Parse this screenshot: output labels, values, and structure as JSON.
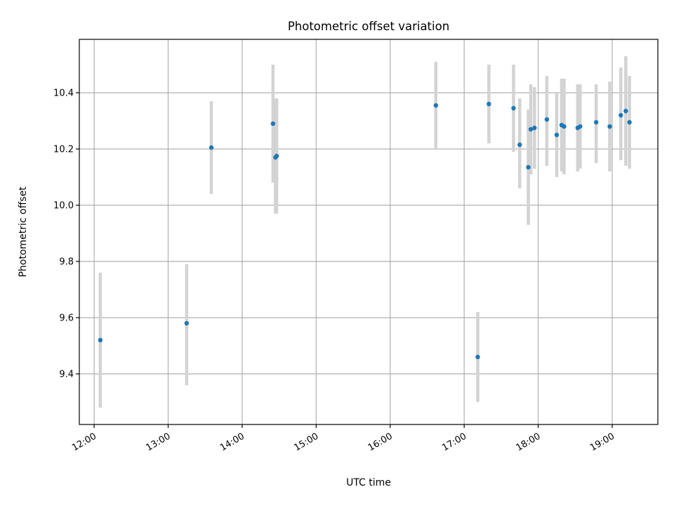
{
  "chart_data": {
    "type": "scatter",
    "title": "Photometric offset variation",
    "xlabel": "UTC time",
    "ylabel": "Photometric offset",
    "x_ticks": [
      "12:00",
      "13:00",
      "14:00",
      "15:00",
      "16:00",
      "17:00",
      "18:00",
      "19:00"
    ],
    "y_ticks": [
      "9.4",
      "9.6",
      "9.8",
      "10.0",
      "10.2",
      "10.4"
    ],
    "xlim": [
      "11:48",
      "19:37"
    ],
    "ylim": [
      9.22,
      10.59
    ],
    "grid": true,
    "marker_color": "#1f77b4",
    "errorbar_color": "#d3d3d3",
    "points": [
      {
        "x": "12:05",
        "y": 9.52,
        "ylow": 9.28,
        "yhigh": 9.76
      },
      {
        "x": "13:15",
        "y": 9.58,
        "ylow": 9.36,
        "yhigh": 9.79
      },
      {
        "x": "13:35",
        "y": 10.205,
        "ylow": 10.04,
        "yhigh": 10.37
      },
      {
        "x": "14:25",
        "y": 10.29,
        "ylow": 10.08,
        "yhigh": 10.5
      },
      {
        "x": "14:27",
        "y": 10.17,
        "ylow": 9.97,
        "yhigh": 10.38
      },
      {
        "x": "14:28",
        "y": 10.175,
        "ylow": 9.97,
        "yhigh": 10.38
      },
      {
        "x": "16:37",
        "y": 10.355,
        "ylow": 10.2,
        "yhigh": 10.51
      },
      {
        "x": "17:11",
        "y": 9.46,
        "ylow": 9.3,
        "yhigh": 9.62
      },
      {
        "x": "17:20",
        "y": 10.36,
        "ylow": 10.22,
        "yhigh": 10.5
      },
      {
        "x": "17:40",
        "y": 10.345,
        "ylow": 10.19,
        "yhigh": 10.5
      },
      {
        "x": "17:45",
        "y": 10.215,
        "ylow": 10.06,
        "yhigh": 10.38
      },
      {
        "x": "17:52",
        "y": 10.135,
        "ylow": 9.93,
        "yhigh": 10.34
      },
      {
        "x": "17:54",
        "y": 10.27,
        "ylow": 10.11,
        "yhigh": 10.43
      },
      {
        "x": "17:57",
        "y": 10.275,
        "ylow": 10.13,
        "yhigh": 10.42
      },
      {
        "x": "18:07",
        "y": 10.305,
        "ylow": 10.14,
        "yhigh": 10.46
      },
      {
        "x": "18:15",
        "y": 10.25,
        "ylow": 10.1,
        "yhigh": 10.4
      },
      {
        "x": "18:19",
        "y": 10.285,
        "ylow": 10.12,
        "yhigh": 10.45
      },
      {
        "x": "18:21",
        "y": 10.28,
        "ylow": 10.11,
        "yhigh": 10.45
      },
      {
        "x": "18:32",
        "y": 10.275,
        "ylow": 10.12,
        "yhigh": 10.43
      },
      {
        "x": "18:34",
        "y": 10.28,
        "ylow": 10.13,
        "yhigh": 10.43
      },
      {
        "x": "18:47",
        "y": 10.295,
        "ylow": 10.15,
        "yhigh": 10.43
      },
      {
        "x": "18:58",
        "y": 10.28,
        "ylow": 10.12,
        "yhigh": 10.44
      },
      {
        "x": "19:07",
        "y": 10.32,
        "ylow": 10.16,
        "yhigh": 10.49
      },
      {
        "x": "19:11",
        "y": 10.335,
        "ylow": 10.14,
        "yhigh": 10.53
      },
      {
        "x": "19:14",
        "y": 10.295,
        "ylow": 10.13,
        "yhigh": 10.46
      }
    ]
  }
}
